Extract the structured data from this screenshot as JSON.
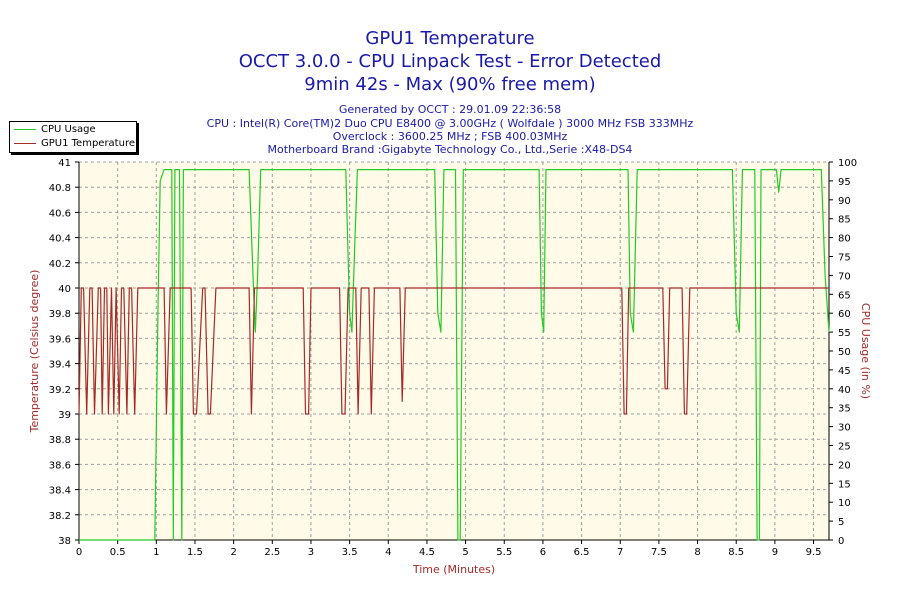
{
  "header": {
    "title1": "GPU1 Temperature",
    "title2": "OCCT 3.0.0 - CPU Linpack Test - Error Detected",
    "title3": "9min 42s - Max (90% free mem)",
    "info1": "Generated by OCCT : 29.01.09 22:36:58",
    "info2": "CPU : Intel(R) Core(TM)2 Duo CPU E8400 @ 3.00GHz ( Wolfdale ) 3000 MHz FSB 333MHz",
    "info3": "Overclock : 3600.25 MHz ; FSB 400.03MHz",
    "info4": "Motherboard Brand :Gigabyte Technology Co., Ltd.,Serie :X48-DS4"
  },
  "legend": {
    "cpu_label": "CPU Usage",
    "gpu_label": "GPU1 Temperature"
  },
  "colors": {
    "cpu": "#22cc22",
    "gpu": "#a52a2a",
    "plot_bg": "#fffbe8",
    "text": "#1a1aa8"
  },
  "chart_data": {
    "type": "line",
    "xlabel": "Time (Minutes)",
    "ylabel_left": "Temperature (Celsius degree)",
    "ylabel_right": "CPU Usage (in %)",
    "xlim": [
      0,
      9.7
    ],
    "ylim_left": [
      38,
      41
    ],
    "ylim_right": [
      0,
      100
    ],
    "grid": true,
    "legend_position": "top-left",
    "x_ticks": [
      "0",
      "0.5",
      "1",
      "1.5",
      "2",
      "2.5",
      "3",
      "3.5",
      "4",
      "4.5",
      "5",
      "5.5",
      "6",
      "6.5",
      "7",
      "7.5",
      "8",
      "8.5",
      "9",
      "9.5"
    ],
    "y_left_ticks": [
      "38",
      "38.2",
      "38.4",
      "38.6",
      "38.8",
      "39",
      "39.2",
      "39.4",
      "39.6",
      "39.8",
      "40",
      "40.2",
      "40.4",
      "40.6",
      "40.8",
      "41"
    ],
    "y_right_ticks": [
      "0",
      "5",
      "10",
      "15",
      "20",
      "25",
      "30",
      "35",
      "40",
      "45",
      "50",
      "55",
      "60",
      "65",
      "70",
      "75",
      "80",
      "85",
      "90",
      "95",
      "100"
    ],
    "series": [
      {
        "name": "CPU Usage",
        "axis": "right",
        "x": [
          0,
          0.98,
          1.02,
          1.05,
          1.1,
          1.2,
          1.22,
          1.24,
          1.3,
          1.33,
          1.35,
          1.4,
          1.5,
          1.8,
          2.0,
          2.2,
          2.25,
          2.28,
          2.31,
          2.35,
          2.5,
          3.0,
          3.45,
          3.5,
          3.53,
          3.57,
          3.6,
          4.0,
          4.2,
          4.5,
          4.6,
          4.64,
          4.68,
          4.72,
          4.8,
          4.87,
          4.9,
          4.93,
          4.97,
          5.0,
          5.5,
          5.95,
          5.98,
          6.01,
          6.04,
          6.08,
          6.5,
          7.0,
          7.1,
          7.13,
          7.17,
          7.22,
          7.25,
          7.5,
          8.0,
          8.45,
          8.5,
          8.54,
          8.58,
          8.62,
          8.74,
          8.77,
          8.8,
          8.82,
          8.84,
          8.87,
          8.9,
          8.95,
          9.02,
          9.05,
          9.08,
          9.2,
          9.5,
          9.6,
          9.65,
          9.7
        ],
        "y": [
          0,
          0,
          60,
          95,
          98,
          98,
          0,
          98,
          98,
          0,
          98,
          98,
          98,
          98,
          98,
          98,
          70,
          55,
          70,
          98,
          98,
          98,
          98,
          60,
          55,
          80,
          98,
          98,
          98,
          98,
          98,
          60,
          55,
          98,
          98,
          98,
          0,
          0,
          98,
          98,
          98,
          98,
          60,
          55,
          98,
          98,
          98,
          98,
          98,
          60,
          55,
          98,
          98,
          98,
          98,
          98,
          60,
          55,
          98,
          98,
          98,
          0,
          0,
          98,
          98,
          98,
          98,
          98,
          98,
          92,
          98,
          98,
          98,
          98,
          70,
          55
        ]
      },
      {
        "name": "GPU1 Temperature",
        "axis": "left",
        "x": [
          0,
          0.03,
          0.06,
          0.1,
          0.14,
          0.17,
          0.2,
          0.25,
          0.28,
          0.3,
          0.33,
          0.36,
          0.38,
          0.42,
          0.45,
          0.48,
          0.52,
          0.55,
          0.58,
          0.62,
          0.65,
          0.68,
          0.72,
          0.76,
          0.8,
          0.85,
          1.1,
          1.13,
          1.18,
          1.22,
          1.45,
          1.48,
          1.52,
          1.6,
          1.63,
          1.67,
          1.7,
          1.77,
          1.8,
          1.85,
          2.2,
          2.23,
          2.27,
          2.3,
          2.9,
          2.93,
          2.97,
          3.0,
          3.37,
          3.4,
          3.44,
          3.48,
          3.58,
          3.61,
          3.65,
          3.68,
          3.75,
          3.78,
          3.82,
          3.87,
          4.15,
          4.18,
          4.22,
          4.26,
          7.02,
          7.05,
          7.08,
          7.11,
          7.55,
          7.58,
          7.61,
          7.64,
          7.8,
          7.83,
          7.86,
          7.9,
          9.7
        ],
        "y": [
          39,
          40,
          40,
          39,
          40,
          40,
          39,
          40,
          40,
          39,
          40,
          40,
          39,
          40,
          39,
          40,
          39,
          40,
          40,
          39,
          40,
          40,
          39,
          40,
          40,
          40,
          40,
          39,
          40,
          40,
          40,
          39,
          39,
          40,
          40,
          39,
          39,
          40,
          40,
          40,
          40,
          39,
          40,
          40,
          40,
          39,
          39,
          40,
          40,
          39,
          39,
          40,
          40,
          39,
          40,
          40,
          40,
          39,
          40,
          40,
          40,
          39.1,
          40,
          40,
          40,
          39,
          39,
          40,
          40,
          39.2,
          39.2,
          40,
          40,
          39,
          39,
          40,
          40
        ]
      }
    ]
  }
}
